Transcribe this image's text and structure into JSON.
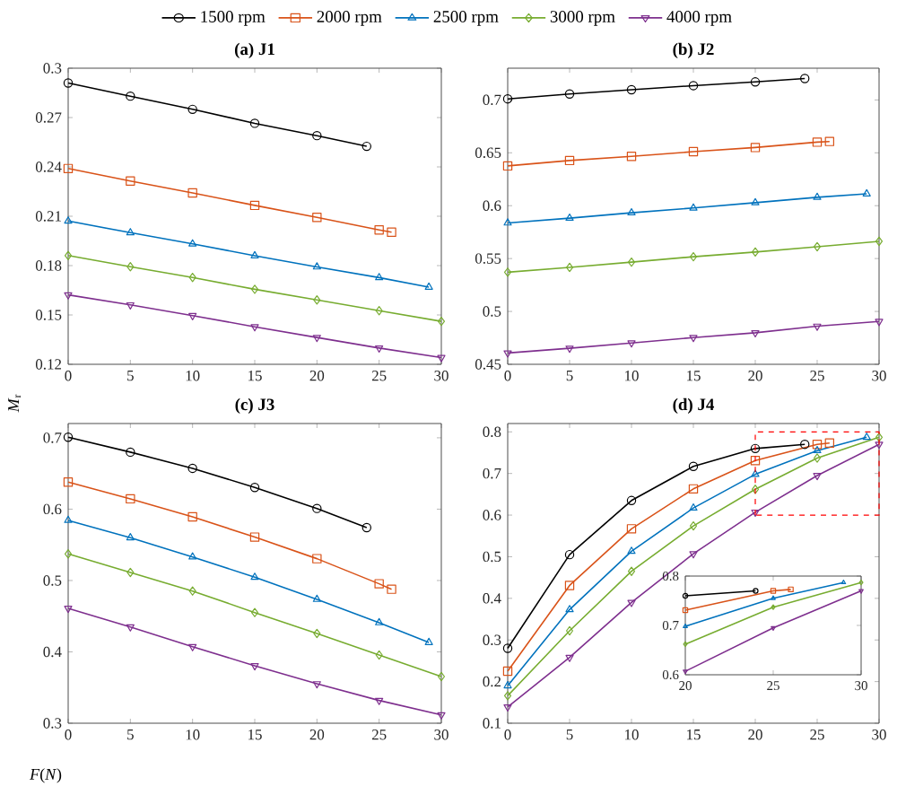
{
  "chart_data": [
    {
      "type": "line",
      "title": "(a)  J1",
      "ylabel": "*M*$_{r}$",
      "legend": "top",
      "line_style": "solid",
      "xlim": [
        0,
        30
      ],
      "ylim": [
        0.12,
        0.3
      ],
      "xticks": [
        0,
        5,
        10,
        15,
        20,
        25,
        30
      ],
      "yticks": [
        0.12,
        0.15,
        0.18,
        0.21,
        0.24,
        0.27,
        0.3
      ],
      "series": [
        {
          "name": "1500 rpm",
          "color": "#000000",
          "marker": "circle",
          "x": [
            0,
            5,
            10,
            15,
            20,
            24
          ],
          "values": [
            0.291,
            0.283,
            0.275,
            0.2665,
            0.259,
            0.2525
          ]
        },
        {
          "name": "2000 rpm",
          "color": "#d95319",
          "marker": "square",
          "x": [
            0,
            5,
            10,
            15,
            20,
            25,
            26
          ],
          "values": [
            0.239,
            0.2314,
            0.2242,
            0.2166,
            0.2093,
            0.2017,
            0.2003
          ]
        },
        {
          "name": "2500 rpm",
          "color": "#0072bd",
          "marker": "triangle",
          "x": [
            0,
            5,
            10,
            15,
            20,
            25,
            29
          ],
          "values": [
            0.2071,
            0.2,
            0.1932,
            0.186,
            0.1792,
            0.1727,
            0.1669
          ]
        },
        {
          "name": "3000 rpm",
          "color": "#77ac30",
          "marker": "diamond",
          "x": [
            0,
            5,
            10,
            15,
            20,
            25,
            30
          ],
          "values": [
            0.1861,
            0.1793,
            0.1728,
            0.1656,
            0.1591,
            0.1526,
            0.1461
          ]
        },
        {
          "name": "4000 rpm",
          "color": "#7e2f8e",
          "marker": "triangle",
          "x": [
            0,
            5,
            10,
            15,
            20,
            25,
            30
          ],
          "values": [
            0.1622,
            0.1561,
            0.1496,
            0.1428,
            0.1363,
            0.1299,
            0.1241
          ]
        }
      ]
    },
    {
      "type": "line",
      "title": "(b)  J2",
      "line_style": "solid",
      "xlim": [
        0,
        30
      ],
      "ylim": [
        0.45,
        0.73
      ],
      "xticks": [
        0,
        5,
        10,
        15,
        20,
        25,
        30
      ],
      "yticks": [
        0.45,
        0.5,
        0.55,
        0.6,
        0.65,
        0.7
      ],
      "series": [
        {
          "color": "#000000",
          "marker": "circle",
          "x": [
            0,
            5,
            10,
            15,
            20,
            24
          ],
          "values": [
            0.701,
            0.7056,
            0.7096,
            0.7135,
            0.717,
            0.7202
          ]
        },
        {
          "color": "#d95319",
          "marker": "square",
          "x": [
            0,
            5,
            10,
            15,
            20,
            25,
            26
          ],
          "values": [
            0.6376,
            0.6427,
            0.6466,
            0.6511,
            0.655,
            0.6601,
            0.6607
          ]
        },
        {
          "color": "#0072bd",
          "marker": "triangle",
          "x": [
            0,
            5,
            10,
            15,
            20,
            25,
            29
          ],
          "values": [
            0.5837,
            0.5882,
            0.5933,
            0.5978,
            0.6028,
            0.6079,
            0.6112
          ]
        },
        {
          "color": "#77ac30",
          "marker": "diamond",
          "x": [
            0,
            5,
            10,
            15,
            20,
            25,
            30
          ],
          "values": [
            0.5371,
            0.5416,
            0.5466,
            0.5517,
            0.5562,
            0.5612,
            0.5663
          ]
        },
        {
          "color": "#7e2f8e",
          "marker": "triangle",
          "x": [
            0,
            5,
            10,
            15,
            20,
            25,
            30
          ],
          "values": [
            0.4607,
            0.4652,
            0.4702,
            0.4753,
            0.4798,
            0.486,
            0.4905
          ]
        }
      ]
    },
    {
      "type": "line",
      "title": "(c)  J3",
      "xlabel": "*F*(*N*)",
      "line_style": "solid",
      "xlim": [
        0,
        30
      ],
      "ylim": [
        0.3,
        0.72
      ],
      "xticks": [
        0,
        5,
        10,
        15,
        20,
        25,
        30
      ],
      "yticks": [
        0.3,
        0.4,
        0.5,
        0.6,
        0.7
      ],
      "series": [
        {
          "color": "#000000",
          "marker": "circle",
          "x": [
            0,
            5,
            10,
            15,
            20,
            24
          ],
          "values": [
            0.7008,
            0.6799,
            0.6572,
            0.6304,
            0.601,
            0.5742
          ]
        },
        {
          "color": "#d95319",
          "marker": "square",
          "x": [
            0,
            5,
            10,
            15,
            20,
            25,
            26
          ],
          "values": [
            0.6379,
            0.6145,
            0.5893,
            0.5608,
            0.5306,
            0.4954,
            0.4878
          ]
        },
        {
          "color": "#0072bd",
          "marker": "triangle",
          "x": [
            0,
            5,
            10,
            15,
            20,
            25,
            29
          ],
          "values": [
            0.5843,
            0.56,
            0.5331,
            0.5046,
            0.4736,
            0.4409,
            0.4132
          ]
        },
        {
          "color": "#77ac30",
          "marker": "diamond",
          "x": [
            0,
            5,
            10,
            15,
            20,
            25,
            30
          ],
          "values": [
            0.5373,
            0.5113,
            0.4853,
            0.4551,
            0.4258,
            0.3956,
            0.3654
          ]
        },
        {
          "color": "#7e2f8e",
          "marker": "triangle",
          "x": [
            0,
            5,
            10,
            15,
            20,
            25,
            30
          ],
          "values": [
            0.461,
            0.435,
            0.4073,
            0.3805,
            0.3553,
            0.3319,
            0.3117
          ]
        }
      ]
    },
    {
      "type": "line",
      "title": "(d)  J4",
      "line_style": "solid",
      "xlim": [
        0,
        30
      ],
      "ylim": [
        0.1,
        0.82
      ],
      "xticks": [
        0,
        5,
        10,
        15,
        20,
        25,
        30
      ],
      "yticks": [
        0.1,
        0.2,
        0.3,
        0.4,
        0.5,
        0.6,
        0.7,
        0.8
      ],
      "series": [
        {
          "color": "#000000",
          "marker": "circle",
          "x": [
            0,
            5,
            10,
            15,
            20,
            24
          ],
          "values": [
            0.28,
            0.505,
            0.635,
            0.717,
            0.76,
            0.77
          ]
        },
        {
          "color": "#d95319",
          "marker": "square",
          "x": [
            0,
            5,
            10,
            15,
            20,
            25,
            26
          ],
          "values": [
            0.225,
            0.431,
            0.567,
            0.663,
            0.731,
            0.77,
            0.773
          ]
        },
        {
          "color": "#0072bd",
          "marker": "triangle",
          "x": [
            0,
            5,
            10,
            15,
            20,
            25,
            29
          ],
          "values": [
            0.19,
            0.373,
            0.513,
            0.617,
            0.698,
            0.755,
            0.787
          ]
        },
        {
          "color": "#77ac30",
          "marker": "diamond",
          "x": [
            0,
            5,
            10,
            15,
            20,
            25,
            30
          ],
          "values": [
            0.166,
            0.322,
            0.465,
            0.574,
            0.662,
            0.737,
            0.787
          ]
        },
        {
          "color": "#7e2f8e",
          "marker": "triangle",
          "x": [
            0,
            5,
            10,
            15,
            20,
            25,
            30
          ],
          "values": [
            0.139,
            0.258,
            0.39,
            0.507,
            0.607,
            0.695,
            0.77
          ]
        }
      ]
    },
    {
      "type": "line",
      "line_style": "solid",
      "xlim": [
        20,
        30
      ],
      "ylim": [
        0.6,
        0.8
      ],
      "xticks": [
        20,
        25,
        30
      ],
      "yticks": [
        0.6,
        0.7,
        0.8
      ],
      "series": [
        {
          "color": "#000000",
          "marker": "circle",
          "x": [
            20,
            24
          ],
          "values": [
            0.76,
            0.77
          ]
        },
        {
          "color": "#d95319",
          "marker": "square",
          "x": [
            20,
            25,
            26
          ],
          "values": [
            0.731,
            0.77,
            0.773
          ]
        },
        {
          "color": "#0072bd",
          "marker": "triangle",
          "x": [
            20,
            25,
            29
          ],
          "values": [
            0.698,
            0.755,
            0.787
          ]
        },
        {
          "color": "#77ac30",
          "marker": "diamond",
          "x": [
            20,
            25,
            30
          ],
          "values": [
            0.662,
            0.737,
            0.787
          ]
        },
        {
          "color": "#7e2f8e",
          "marker": "triangle",
          "x": [
            20,
            25,
            30
          ],
          "values": [
            0.607,
            0.695,
            0.77
          ]
        }
      ]
    }
  ]
}
